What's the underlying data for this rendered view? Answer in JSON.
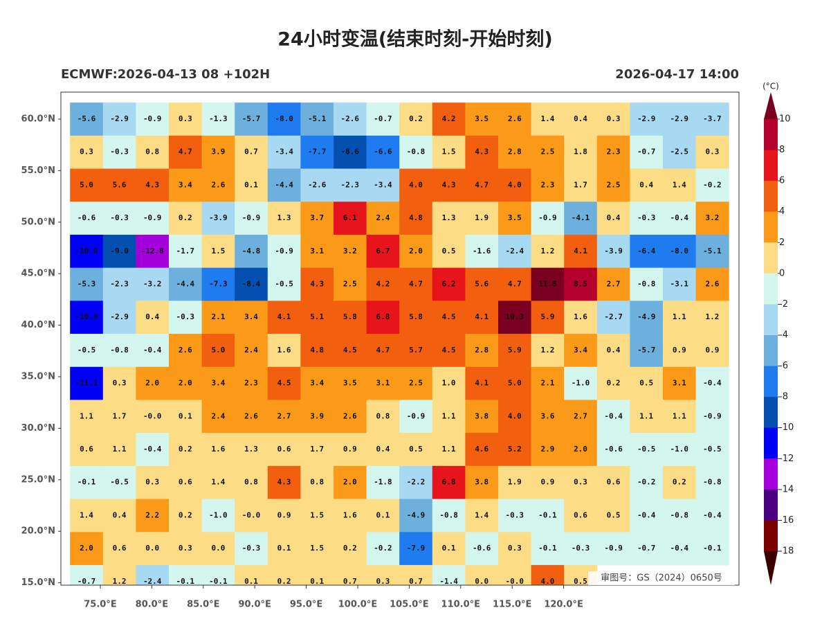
{
  "header": {
    "title": "24小时变温(结束时刻-开始时刻)",
    "model": "ECMWF:2026-04-13 08 +102H",
    "valid": "2026-04-17 14:00"
  },
  "lat_labels": [
    "60.0°N",
    "55.0°N",
    "50.0°N",
    "45.0°N",
    "40.0°N",
    "35.0°N",
    "30.0°N",
    "25.0°N",
    "20.0°N",
    "15.0°N"
  ],
  "lon_labels": [
    "75.0°E",
    "80.0°E",
    "85.0°E",
    "90.0°E",
    "95.0°E",
    "100.0°E",
    "105.0°E",
    "110.0°E",
    "115.0°E",
    "120.0°E"
  ],
  "colorbar": {
    "unit": "(°C)",
    "levels": [
      10,
      8,
      6,
      4,
      2,
      0,
      -2,
      -4,
      -6,
      -8,
      -10,
      -12,
      -14,
      -16,
      -18
    ],
    "colors": [
      "#7a0020",
      "#b3002d",
      "#e8141c",
      "#f2600f",
      "#fb9a18",
      "#fddc86",
      "#d3f6ee",
      "#a7d9f2",
      "#6eb0dd",
      "#1f7bf0",
      "#0350b0",
      "#0000f5",
      "#a400dc",
      "#4a0080",
      "#7c0000",
      "#3a0000"
    ]
  },
  "grid": [
    [
      "-5.6",
      "-2.9",
      "-0.9",
      "0.3",
      "-1.3",
      "-5.7",
      "-8.0",
      "-5.1",
      "-2.6",
      "-0.7",
      "0.2",
      "4.2",
      "3.5",
      "2.6",
      "1.4",
      "0.4",
      "0.3",
      "-2.9",
      "-2.9",
      "-3.7"
    ],
    [
      "0.3",
      "-0.3",
      "0.8",
      "4.7",
      "3.9",
      "0.7",
      "-3.4",
      "-7.7",
      "-8.6",
      "-6.6",
      "-0.8",
      "1.5",
      "4.3",
      "2.8",
      "2.5",
      "1.8",
      "2.3",
      "-0.7",
      "-2.5",
      "0.3"
    ],
    [
      "5.0",
      "5.6",
      "4.3",
      "3.4",
      "2.6",
      "0.1",
      "-4.4",
      "-2.6",
      "-2.3",
      "-3.4",
      "4.0",
      "4.3",
      "4.7",
      "4.0",
      "2.3",
      "1.7",
      "2.5",
      "0.4",
      "1.4",
      "-0.2"
    ],
    [
      "-0.6",
      "-0.3",
      "-0.9",
      "0.2",
      "-3.9",
      "-0.9",
      "1.3",
      "3.7",
      "6.1",
      "2.4",
      "4.8",
      "1.3",
      "1.9",
      "3.5",
      "-0.9",
      "-4.1",
      "0.4",
      "-0.3",
      "-0.4",
      "3.2"
    ],
    [
      "-10.6",
      "-9.0",
      "-12.8",
      "-1.7",
      "1.5",
      "-4.8",
      "-0.9",
      "3.1",
      "3.2",
      "6.7",
      "2.0",
      "0.5",
      "-1.6",
      "-2.4",
      "1.2",
      "4.1",
      "-3.9",
      "-6.4",
      "-8.0",
      "-5.1"
    ],
    [
      "-5.3",
      "-2.3",
      "-3.2",
      "-4.4",
      "-7.3",
      "-8.4",
      "-0.5",
      "4.3",
      "2.5",
      "4.2",
      "4.7",
      "6.2",
      "5.6",
      "4.7",
      "11.8",
      "8.5",
      "2.7",
      "-0.8",
      "-3.1",
      "2.6"
    ],
    [
      "-10.9",
      "-2.9",
      "0.4",
      "-0.3",
      "2.1",
      "3.4",
      "4.1",
      "5.1",
      "5.8",
      "6.8",
      "5.8",
      "4.5",
      "4.1",
      "10.3",
      "5.9",
      "1.6",
      "-2.7",
      "-4.9",
      "1.1",
      "1.2"
    ],
    [
      "-0.5",
      "-0.8",
      "-0.4",
      "2.6",
      "5.0",
      "2.4",
      "1.6",
      "4.8",
      "4.5",
      "4.7",
      "5.7",
      "4.5",
      "2.8",
      "5.9",
      "1.2",
      "3.4",
      "0.4",
      "-5.7",
      "0.9",
      "0.9"
    ],
    [
      "-11.1",
      "0.3",
      "2.0",
      "2.0",
      "3.4",
      "2.3",
      "4.5",
      "3.4",
      "3.5",
      "3.1",
      "2.5",
      "1.0",
      "4.1",
      "5.0",
      "2.1",
      "-1.0",
      "0.2",
      "0.5",
      "3.1",
      "-0.4"
    ],
    [
      "1.1",
      "1.7",
      "-0.0",
      "0.1",
      "2.4",
      "2.6",
      "2.7",
      "3.9",
      "2.6",
      "0.8",
      "-0.9",
      "1.1",
      "3.8",
      "4.0",
      "3.6",
      "2.7",
      "-0.4",
      "1.1",
      "1.1",
      "-0.9"
    ],
    [
      "0.6",
      "1.1",
      "-0.4",
      "0.2",
      "1.6",
      "1.3",
      "0.6",
      "1.7",
      "0.9",
      "0.4",
      "0.5",
      "1.1",
      "4.6",
      "5.2",
      "2.9",
      "2.0",
      "-0.6",
      "-0.5",
      "-1.0",
      "-0.5"
    ],
    [
      "-0.1",
      "-0.5",
      "0.3",
      "0.6",
      "1.4",
      "0.8",
      "4.3",
      "0.8",
      "2.0",
      "-1.8",
      "-2.2",
      "6.8",
      "3.8",
      "1.9",
      "0.9",
      "0.3",
      "0.6",
      "-0.2",
      "0.2",
      "-0.8"
    ],
    [
      "1.4",
      "0.4",
      "2.2",
      "0.2",
      "-1.0",
      "-0.0",
      "0.9",
      "1.5",
      "1.6",
      "0.1",
      "-4.9",
      "-0.8",
      "1.4",
      "-0.3",
      "-0.1",
      "0.6",
      "0.5",
      "-0.4",
      "-0.8",
      "-0.4"
    ],
    [
      "2.0",
      "0.6",
      "0.0",
      "0.3",
      "0.0",
      "-0.3",
      "0.1",
      "1.5",
      "0.2",
      "-0.2",
      "-7.9",
      "0.1",
      "-0.6",
      "0.3",
      "-0.1",
      "-0.3",
      "-0.9",
      "-0.7",
      "-0.4",
      "-0.1"
    ],
    [
      "-0.7",
      "1.2",
      "-2.4",
      "-0.1",
      "-0.1",
      "0.1",
      "0.2",
      "0.1",
      "0.7",
      "0.3",
      "0.7",
      "-1.4",
      "0.0",
      "-0.0",
      "4.0",
      "0.5"
    ]
  ],
  "footer": "审图号：GS（2024）0650号"
}
